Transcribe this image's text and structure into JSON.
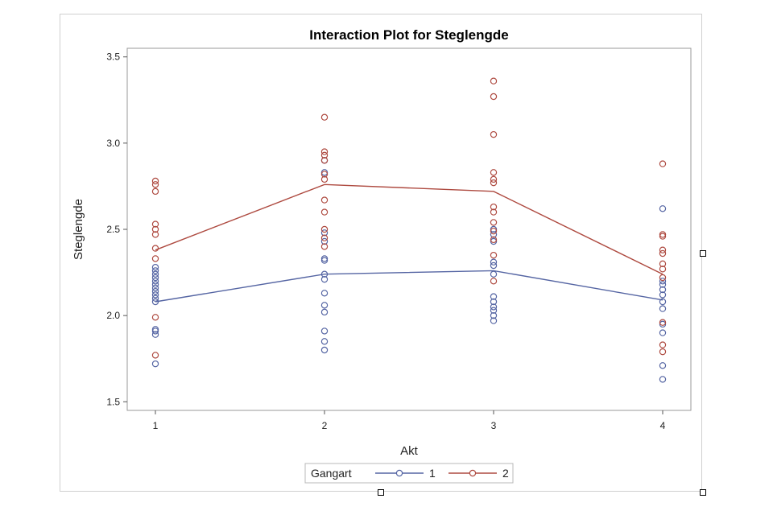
{
  "chart_data": {
    "type": "line",
    "title": "Interaction Plot for Steglengde",
    "xlabel": "Akt",
    "ylabel": "Steglengde",
    "categories": [
      "1",
      "2",
      "3",
      "4"
    ],
    "ylim": [
      1.45,
      3.55
    ],
    "yticks": [
      "1.5",
      "2.0",
      "2.5",
      "3.0",
      "3.5"
    ],
    "legend": {
      "title": "Gangart",
      "placement": "bottom"
    },
    "series": [
      {
        "name": "1",
        "color": "#5565a3",
        "means": [
          2.08,
          2.24,
          2.26,
          2.09
        ],
        "points": [
          [
            1.72,
            1.89,
            1.91,
            1.92,
            2.08,
            2.1,
            2.12,
            2.14,
            2.16,
            2.18,
            2.2,
            2.22,
            2.24,
            2.26,
            2.28
          ],
          [
            1.8,
            1.85,
            1.91,
            2.02,
            2.06,
            2.13,
            2.21,
            2.24,
            2.32,
            2.33,
            2.43,
            2.48,
            2.83,
            2.9
          ],
          [
            1.97,
            2.0,
            2.03,
            2.05,
            2.08,
            2.11,
            2.24,
            2.29,
            2.31,
            2.43,
            2.47,
            2.5
          ],
          [
            1.63,
            1.71,
            1.9,
            1.95,
            2.04,
            2.08,
            2.12,
            2.15,
            2.18,
            2.2,
            2.62
          ]
        ]
      },
      {
        "name": "2",
        "color": "#ae4a40",
        "means": [
          2.38,
          2.76,
          2.72,
          2.24
        ],
        "points": [
          [
            1.77,
            1.99,
            2.33,
            2.39,
            2.47,
            2.5,
            2.53,
            2.72,
            2.76,
            2.78
          ],
          [
            2.4,
            2.45,
            2.5,
            2.6,
            2.67,
            2.79,
            2.82,
            2.9,
            2.93,
            2.95,
            3.15
          ],
          [
            2.2,
            2.35,
            2.44,
            2.49,
            2.54,
            2.6,
            2.63,
            2.77,
            2.79,
            2.83,
            3.05,
            3.27,
            3.36
          ],
          [
            1.79,
            1.83,
            1.96,
            2.22,
            2.27,
            2.3,
            2.36,
            2.38,
            2.46,
            2.47,
            2.88
          ]
        ]
      }
    ]
  }
}
